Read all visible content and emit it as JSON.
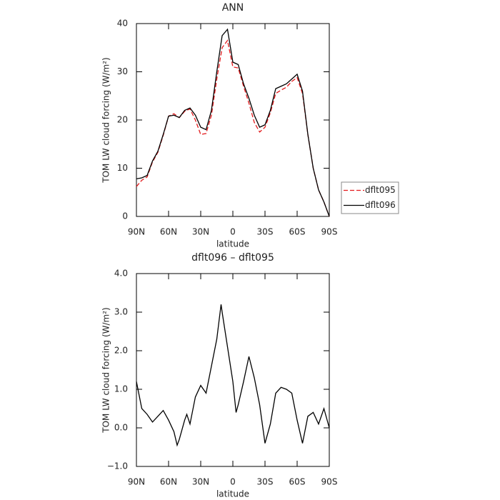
{
  "chart_data": [
    {
      "type": "line",
      "title": "ANN",
      "x_label": "latitude",
      "y_label": "TOM LW cloud forcing (W/m²)",
      "x": [
        90,
        85,
        80,
        75,
        70,
        65,
        60,
        55,
        50,
        45,
        40,
        35,
        30,
        25,
        20,
        15,
        10,
        5,
        0,
        -5,
        -10,
        -15,
        -20,
        -25,
        -30,
        -35,
        -40,
        -45,
        -50,
        -55,
        -60,
        -65,
        -70,
        -75,
        -80,
        -85,
        -90
      ],
      "series": [
        {
          "name": "dflt095",
          "color": "#e31a1c",
          "line_style": "dashed",
          "values": [
            6.2,
            7.5,
            8.2,
            11.3,
            13.3,
            16.8,
            20.8,
            21.3,
            20.5,
            21.8,
            22.3,
            20,
            17,
            17.2,
            21,
            28.5,
            35,
            36.5,
            31,
            30.8,
            27,
            23.5,
            19.5,
            17.5,
            18.5,
            21.5,
            25.5,
            26.2,
            26.8,
            28,
            28.8,
            25.5,
            17,
            10,
            5.5,
            3,
            0
          ]
        },
        {
          "name": "dflt096",
          "color": "#000000",
          "line_style": "solid",
          "values": [
            7.8,
            8,
            8.5,
            11.5,
            13.5,
            17,
            20.8,
            21,
            20.5,
            22,
            22.5,
            21,
            18.5,
            18,
            22,
            30,
            37.5,
            38.8,
            32,
            31.5,
            27.5,
            24.5,
            21,
            18.5,
            19,
            22,
            26.5,
            27,
            27.5,
            28.5,
            29.5,
            26,
            17,
            10,
            5.5,
            3,
            0
          ]
        }
      ],
      "xlim": [
        90,
        -90
      ],
      "xticks": [
        {
          "value": 90,
          "label": "90N"
        },
        {
          "value": 60,
          "label": "60N"
        },
        {
          "value": 30,
          "label": "30N"
        },
        0,
        {
          "value": -30,
          "label": "30S"
        },
        {
          "value": -60,
          "label": "60S"
        },
        {
          "value": -90,
          "label": "90S"
        }
      ],
      "ylim": [
        0,
        40
      ],
      "yticks": [
        0,
        10,
        20,
        30,
        40
      ],
      "legend": "outside-right"
    },
    {
      "type": "line",
      "title": "dflt096 – dflt095",
      "x_label": "latitude",
      "y_label": "TOM LW cloud forcing (W/m²)",
      "x": [
        90,
        85,
        80,
        75,
        70,
        65,
        60,
        55,
        52,
        50,
        45,
        43,
        40,
        35,
        30,
        25,
        20,
        15,
        11,
        10,
        5,
        0,
        -3,
        -5,
        -10,
        -15,
        -20,
        -25,
        -30,
        -35,
        -40,
        -45,
        -50,
        -55,
        -60,
        -65,
        -70,
        -75,
        -80,
        -85,
        -90
      ],
      "series": [
        {
          "color": "#000000",
          "line_style": "solid",
          "values": [
            1.2,
            0.5,
            0.35,
            0.15,
            0.3,
            0.45,
            0.2,
            -0.1,
            -0.45,
            -0.3,
            0.2,
            0.35,
            0.1,
            0.8,
            1.1,
            0.9,
            1.6,
            2.3,
            3.2,
            3.0,
            2.1,
            1.2,
            0.4,
            0.6,
            1.2,
            1.85,
            1.3,
            0.6,
            -0.4,
            0.1,
            0.9,
            1.05,
            1.0,
            0.9,
            0.2,
            -0.4,
            0.3,
            0.4,
            0.1,
            0.5,
            0.0
          ]
        }
      ],
      "xlim": [
        90,
        -90
      ],
      "xticks": [
        {
          "value": 90,
          "label": "90N"
        },
        {
          "value": 60,
          "label": "60N"
        },
        {
          "value": 30,
          "label": "30N"
        },
        0,
        {
          "value": -30,
          "label": "30S"
        },
        {
          "value": -60,
          "label": "60S"
        },
        {
          "value": -90,
          "label": "90S"
        }
      ],
      "ylim": [
        -1,
        4
      ],
      "yticks": [
        {
          "value": -1,
          "label": "−1.0"
        },
        {
          "value": 0,
          "label": "0.0"
        },
        {
          "value": 1,
          "label": "1.0"
        },
        {
          "value": 2,
          "label": "2.0"
        },
        {
          "value": 3,
          "label": "3.0"
        },
        {
          "value": 4,
          "label": "4.0"
        }
      ]
    }
  ]
}
